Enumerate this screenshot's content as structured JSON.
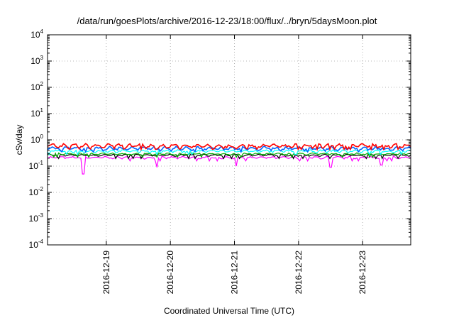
{
  "chart_data": {
    "type": "line",
    "title": "/data/run/goesPlots/archive/2016-12-23/18:00/flux/../bryn/5daysMoon.plot",
    "xlabel": "Coordinated Universal Time (UTC)",
    "ylabel": "cSv/day",
    "yscale": "log",
    "ylim": [
      0.0001,
      10000
    ],
    "y_ticks": [
      {
        "base": "10",
        "exp": "-4"
      },
      {
        "base": "10",
        "exp": "-3"
      },
      {
        "base": "10",
        "exp": "-2"
      },
      {
        "base": "10",
        "exp": "-1"
      },
      {
        "base": "10",
        "exp": "0"
      },
      {
        "base": "10",
        "exp": "1"
      },
      {
        "base": "10",
        "exp": "2"
      },
      {
        "base": "10",
        "exp": "3"
      },
      {
        "base": "10",
        "exp": "4"
      }
    ],
    "xlim": [
      "2016-12-18T02:00",
      "2016-12-23T18:00"
    ],
    "x_ticks": [
      "2016-12-19",
      "2016-12-20",
      "2016-12-21",
      "2016-12-22",
      "2016-12-23"
    ],
    "grid": true,
    "series": [
      {
        "color": "#ff00ff",
        "base": 0.21,
        "amp": 0.06,
        "dips": [
          [
            0.1,
            0.05
          ],
          [
            0.3,
            0.09
          ],
          [
            0.52,
            0.1
          ],
          [
            0.78,
            0.09
          ],
          [
            0.92,
            0.11
          ]
        ]
      },
      {
        "color": "#000000",
        "base": 0.26,
        "amp": 0.05,
        "dips": []
      },
      {
        "color": "#00aa00",
        "base": 0.29,
        "amp": 0.05,
        "dips": []
      },
      {
        "color": "#00ffff",
        "base": 0.37,
        "amp": 0.07,
        "dips": []
      },
      {
        "color": "#0066ff",
        "base": 0.47,
        "amp": 0.1,
        "dips": []
      },
      {
        "color": "#ff0000",
        "base": 0.58,
        "amp": 0.12,
        "dips": []
      }
    ]
  }
}
